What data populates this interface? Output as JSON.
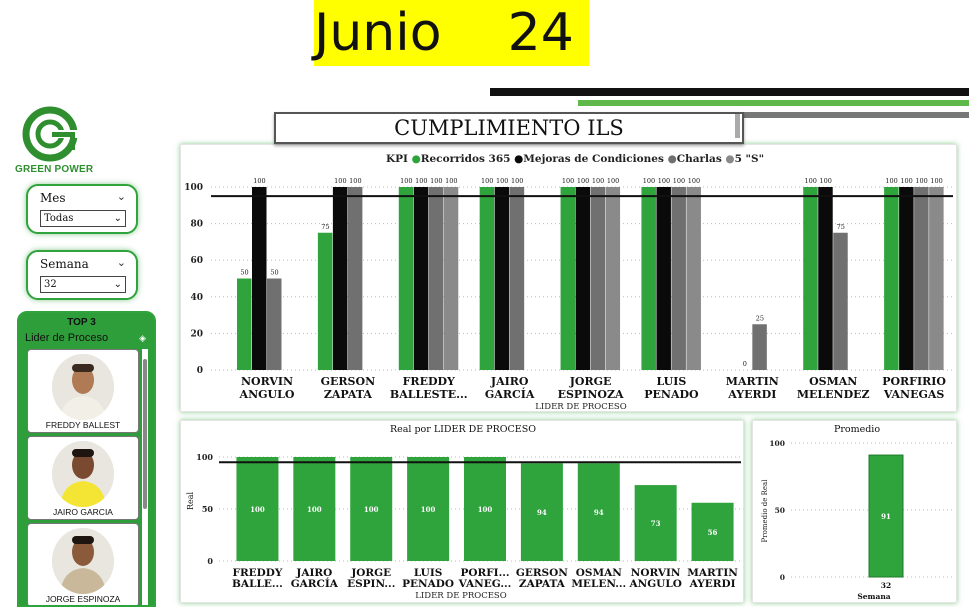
{
  "header": {
    "title": "Junio    24"
  },
  "logo": {
    "text": "GREEN POWER",
    "icon": "green-power-logo-icon"
  },
  "slicers": {
    "mes": {
      "label": "Mes",
      "value": "Todas"
    },
    "semana": {
      "label": "Semana",
      "value": "32"
    }
  },
  "top3": {
    "title": "TOP 3",
    "subtitle": "Lider de Proceso",
    "cards": [
      {
        "name": "FREDDY BALLEST"
      },
      {
        "name": "JAIRO GARCIA"
      },
      {
        "name": "JORGE ESPINOZA"
      }
    ]
  },
  "main_title": "CUMPLIMIENTO ILS",
  "colors": {
    "accent_green": "#2fa33c",
    "bar_black": "#0a0a0a",
    "bar_grey": "#707070",
    "highlight_yellow": "#ffff00"
  },
  "chart_data": [
    {
      "type": "bar",
      "title": "",
      "legend_title": "KPI",
      "legend_position": "top",
      "xlabel": "LIDER DE PROCESO",
      "ylabel": "",
      "ylim": [
        0,
        100
      ],
      "yticks": [
        0,
        20,
        40,
        60,
        80,
        100
      ],
      "reference_line": 95,
      "categories": [
        [
          "NORVIN",
          "ANGULO"
        ],
        [
          "GERSON",
          "ZAPATA"
        ],
        [
          "FREDDY",
          "BALLESTE..."
        ],
        [
          "JAIRO",
          "GARCÍA"
        ],
        [
          "JORGE",
          "ESPINOZA"
        ],
        [
          "LUIS",
          "PENADO"
        ],
        [
          "MARTIN",
          "AYERDI"
        ],
        [
          "OSMAN",
          "MELENDEZ"
        ],
        [
          "PORFIRIO",
          "VANEGAS"
        ]
      ],
      "series": [
        {
          "name": "Recorridos 365",
          "color": "#2fa33c",
          "values": [
            50,
            75,
            100,
            100,
            100,
            100,
            null,
            100,
            100
          ]
        },
        {
          "name": "Mejoras de Condiciones",
          "color": "#0a0a0a",
          "values": [
            100,
            100,
            100,
            100,
            100,
            100,
            0,
            100,
            100
          ]
        },
        {
          "name": "Charlas",
          "color": "#707070",
          "values": [
            50,
            100,
            100,
            100,
            100,
            100,
            25,
            75,
            100
          ]
        },
        {
          "name": "5 \"S\"",
          "color": "#8a8a8a",
          "values": [
            null,
            null,
            100,
            null,
            100,
            100,
            null,
            null,
            100
          ]
        }
      ]
    },
    {
      "type": "bar",
      "title": "Real por LIDER DE PROCESO",
      "xlabel": "LIDER DE PROCESO",
      "ylabel": "Real",
      "ylim": [
        0,
        100
      ],
      "yticks": [
        0,
        50,
        100
      ],
      "reference_line": 95,
      "categories": [
        [
          "FREDDY",
          "BALLE..."
        ],
        [
          "JAIRO",
          "GARCÍA"
        ],
        [
          "JORGE",
          "ESPIN..."
        ],
        [
          "LUIS",
          "PENADO"
        ],
        [
          "PORFI...",
          "VANEG..."
        ],
        [
          "GERSON",
          "ZAPATA"
        ],
        [
          "OSMAN",
          "MELEN..."
        ],
        [
          "NORVIN",
          "ANGULO"
        ],
        [
          "MARTIN",
          "AYERDI"
        ]
      ],
      "values": [
        100,
        100,
        100,
        100,
        100,
        94,
        94,
        73,
        56
      ]
    },
    {
      "type": "bar",
      "title": "Promedio",
      "xlabel": "Semana",
      "ylabel": "Promedio de Real",
      "ylim": [
        0,
        100
      ],
      "yticks": [
        0,
        50,
        100
      ],
      "categories": [
        "32"
      ],
      "values": [
        91
      ]
    }
  ]
}
